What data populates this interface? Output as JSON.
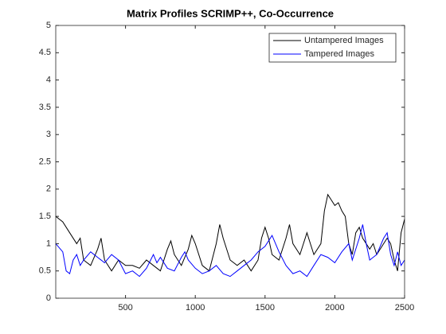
{
  "chart_data": {
    "type": "line",
    "title": "Matrix Profiles SCRIMP++, Co-Occurrence",
    "xlim": [
      0,
      2500
    ],
    "xticks": [
      500,
      1000,
      1500,
      2000,
      2500
    ],
    "ylim": [
      0,
      5
    ],
    "yticks": [
      0,
      0.5,
      1,
      1.5,
      2,
      2.5,
      3,
      3.5,
      4,
      4.5,
      5
    ],
    "legend": "top-right",
    "series": [
      {
        "name": "Untampered Images",
        "color": "#000000",
        "x": [
          0,
          50,
          100,
          150,
          175,
          200,
          250,
          300,
          325,
          350,
          400,
          450,
          500,
          550,
          600,
          650,
          700,
          750,
          800,
          825,
          850,
          900,
          950,
          975,
          1000,
          1050,
          1100,
          1150,
          1175,
          1200,
          1250,
          1300,
          1350,
          1400,
          1450,
          1475,
          1500,
          1525,
          1550,
          1600,
          1650,
          1675,
          1700,
          1750,
          1800,
          1825,
          1850,
          1900,
          1925,
          1950,
          1975,
          2000,
          2025,
          2050,
          2075,
          2100,
          2125,
          2150,
          2175,
          2200,
          2250,
          2275,
          2300,
          2350,
          2375,
          2400,
          2425,
          2450,
          2475,
          2500
        ],
        "values": [
          1.5,
          1.4,
          1.2,
          1.0,
          1.1,
          0.7,
          0.6,
          0.9,
          1.1,
          0.7,
          0.5,
          0.7,
          0.6,
          0.6,
          0.55,
          0.7,
          0.6,
          0.5,
          0.9,
          1.05,
          0.8,
          0.6,
          0.9,
          1.15,
          1.0,
          0.6,
          0.5,
          1.0,
          1.35,
          1.1,
          0.7,
          0.6,
          0.7,
          0.5,
          0.7,
          1.1,
          1.3,
          1.1,
          0.8,
          0.7,
          1.1,
          1.35,
          1.0,
          0.8,
          1.2,
          1.0,
          0.8,
          1.0,
          1.6,
          1.9,
          1.8,
          1.7,
          1.75,
          1.6,
          1.5,
          1.0,
          0.8,
          1.2,
          1.3,
          1.1,
          0.9,
          1.0,
          0.8,
          1.0,
          1.1,
          1.0,
          0.7,
          0.5,
          1.2,
          1.45
        ]
      },
      {
        "name": "Tampered Images",
        "color": "#0000ff",
        "x": [
          0,
          50,
          75,
          100,
          125,
          150,
          175,
          200,
          250,
          300,
          350,
          400,
          450,
          500,
          550,
          600,
          650,
          700,
          725,
          750,
          800,
          850,
          900,
          925,
          950,
          1000,
          1050,
          1100,
          1150,
          1200,
          1250,
          1300,
          1350,
          1400,
          1450,
          1500,
          1550,
          1600,
          1650,
          1700,
          1750,
          1800,
          1850,
          1900,
          1950,
          2000,
          2050,
          2100,
          2125,
          2175,
          2200,
          2225,
          2250,
          2300,
          2350,
          2375,
          2400,
          2425,
          2450,
          2475,
          2500
        ],
        "values": [
          1.0,
          0.85,
          0.5,
          0.45,
          0.7,
          0.8,
          0.6,
          0.7,
          0.85,
          0.75,
          0.65,
          0.8,
          0.7,
          0.45,
          0.5,
          0.4,
          0.55,
          0.8,
          0.65,
          0.75,
          0.55,
          0.5,
          0.75,
          0.85,
          0.7,
          0.55,
          0.45,
          0.5,
          0.6,
          0.45,
          0.4,
          0.5,
          0.6,
          0.7,
          0.85,
          0.95,
          1.15,
          0.85,
          0.6,
          0.45,
          0.5,
          0.4,
          0.6,
          0.8,
          0.75,
          0.65,
          0.85,
          1.0,
          0.7,
          1.1,
          1.35,
          1.0,
          0.7,
          0.8,
          1.1,
          1.2,
          0.8,
          0.6,
          0.85,
          0.6,
          0.7
        ]
      }
    ]
  }
}
